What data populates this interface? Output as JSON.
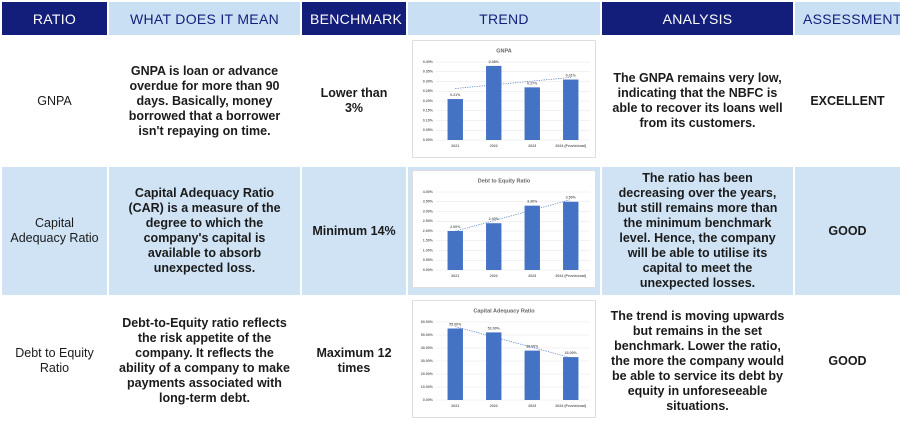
{
  "table": {
    "headers": [
      "RATIO",
      "WHAT DOES IT MEAN",
      "BENCHMARK",
      "TREND",
      "ANALYSIS",
      "ASSESSMENT"
    ],
    "rows": [
      {
        "ratio": "GNPA",
        "meaning": "GNPA is loan or advance overdue for more than 90 days. Basically, money borrowed that a borrower isn't repaying on time.",
        "benchmark": "Lower than 3%",
        "analysis": "The GNPA remains very low, indicating that the NBFC is able to recover its loans well from its customers.",
        "assessment": "EXCELLENT"
      },
      {
        "ratio": "Capital Adequacy Ratio",
        "meaning": "Capital Adequacy Ratio (CAR) is a measure of the degree to which the company's capital is available to absorb unexpected loss.",
        "benchmark": "Minimum 14%",
        "analysis": "The ratio has been decreasing over the years, but still remains more than the minimum benchmark level. Hence, the company will be able to utilise its capital to meet the unexpected losses.",
        "assessment": "GOOD"
      },
      {
        "ratio": "Debt to Equity Ratio",
        "meaning": "Debt-to-Equity ratio reflects the risk appetite of the company. It reflects the ability of a company to make payments associated with long-term debt.",
        "benchmark": "Maximum 12 times",
        "analysis": "The trend is moving upwards but remains in the set benchmark. Lower the ratio, the more the company would be able to service its debt by equity in unforeseeable situations.",
        "assessment": "GOOD"
      }
    ]
  },
  "chart_data": [
    {
      "type": "bar",
      "title": "GNPA",
      "color": "#4472c4",
      "trendline": true,
      "categories": [
        "2021",
        "2022",
        "2023",
        "2024 (Provisional)"
      ],
      "values": [
        0.21,
        0.38,
        0.27,
        0.31
      ],
      "value_labels": [
        "0.21%",
        "0.38%",
        "0.27%",
        "0.31%"
      ],
      "ylim": [
        0,
        0.4
      ],
      "yticks": [
        {
          "value": 0,
          "label": "0.00%"
        },
        {
          "value": 0.05,
          "label": "0.05%"
        },
        {
          "value": 0.1,
          "label": "0.10%"
        },
        {
          "value": 0.15,
          "label": "0.15%"
        },
        {
          "value": 0.2,
          "label": "0.20%"
        },
        {
          "value": 0.25,
          "label": "0.25%"
        },
        {
          "value": 0.3,
          "label": "0.30%"
        },
        {
          "value": 0.35,
          "label": "0.35%"
        },
        {
          "value": 0.4,
          "label": "0.40%"
        }
      ]
    },
    {
      "type": "bar",
      "title": "Debt to Equity Ratio",
      "color": "#4472c4",
      "trendline": true,
      "categories": [
        "2021",
        "2022",
        "2023",
        "2024 (Provisional)"
      ],
      "values": [
        2.0,
        2.4,
        3.3,
        3.5
      ],
      "value_labels": [
        "2.00%",
        "2.40%",
        "3.30%",
        "3.50%"
      ],
      "ylim": [
        0,
        4
      ],
      "yticks": [
        {
          "value": 0,
          "label": "0.00%"
        },
        {
          "value": 0.5,
          "label": "0.50%"
        },
        {
          "value": 1,
          "label": "1.00%"
        },
        {
          "value": 1.5,
          "label": "1.50%"
        },
        {
          "value": 2,
          "label": "2.00%"
        },
        {
          "value": 2.5,
          "label": "2.50%"
        },
        {
          "value": 3,
          "label": "3.00%"
        },
        {
          "value": 3.5,
          "label": "3.50%"
        },
        {
          "value": 4,
          "label": "4.00%"
        }
      ]
    },
    {
      "type": "bar",
      "title": "Capital Adequacy Ratio",
      "color": "#4472c4",
      "trendline": true,
      "categories": [
        "2021",
        "2022",
        "2023",
        "2024 (Provisional)"
      ],
      "values": [
        55,
        52,
        38,
        33
      ],
      "value_labels": [
        "55.00%",
        "52.00%",
        "38.00%",
        "33.00%"
      ],
      "ylim": [
        0,
        60
      ],
      "yticks": [
        {
          "value": 0,
          "label": "0.00%"
        },
        {
          "value": 10,
          "label": "10.00%"
        },
        {
          "value": 20,
          "label": "20.00%"
        },
        {
          "value": 30,
          "label": "30.00%"
        },
        {
          "value": 40,
          "label": "40.00%"
        },
        {
          "value": 50,
          "label": "50.00%"
        },
        {
          "value": 60,
          "label": "60.00%"
        }
      ]
    }
  ]
}
